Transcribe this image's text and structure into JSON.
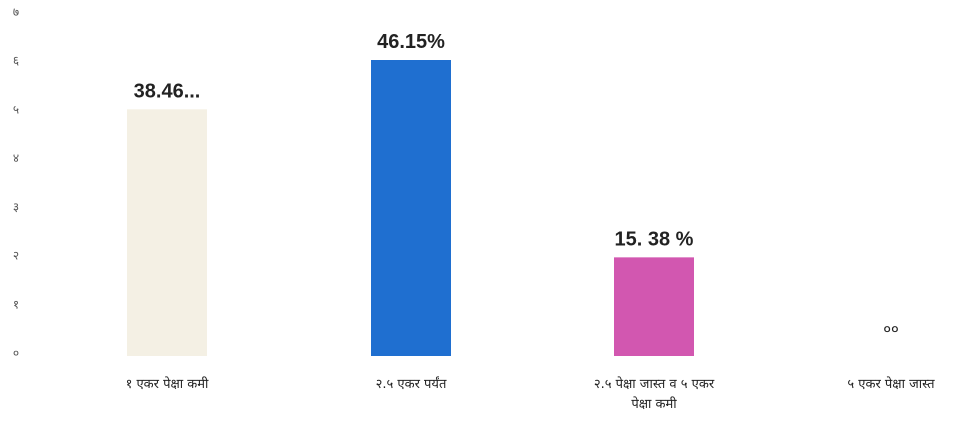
{
  "chart_data": {
    "type": "bar",
    "categories": [
      "१ एकर पेक्षा कमी",
      "२.५ एकर पर्यंत",
      "२.५ पेक्षा जास्त व ५ एकर पेक्षा कमी",
      "५ एकर पेक्षा जास्त"
    ],
    "category_lines": [
      [
        "१ एकर पेक्षा कमी"
      ],
      [
        "२.५ एकर पर्यंत"
      ],
      [
        "२.५ पेक्षा जास्त व ५ एकर",
        "पेक्षा कमी"
      ],
      [
        "५ एकर पेक्षा जास्त"
      ]
    ],
    "values": [
      38.46,
      46.15,
      15.38,
      0
    ],
    "data_labels": [
      "38.46...",
      "46.15%",
      "15. 38 %",
      "००"
    ],
    "colors": [
      "#f4f0e4",
      "#1f6fd0",
      "#d257b0",
      "#ffffff"
    ],
    "yticks": [
      "०",
      "१",
      "२",
      "३",
      "४",
      "५",
      "६",
      "७"
    ],
    "ylim": [
      0,
      50
    ],
    "title": "",
    "xlabel": "",
    "ylabel": "",
    "grid": false
  }
}
